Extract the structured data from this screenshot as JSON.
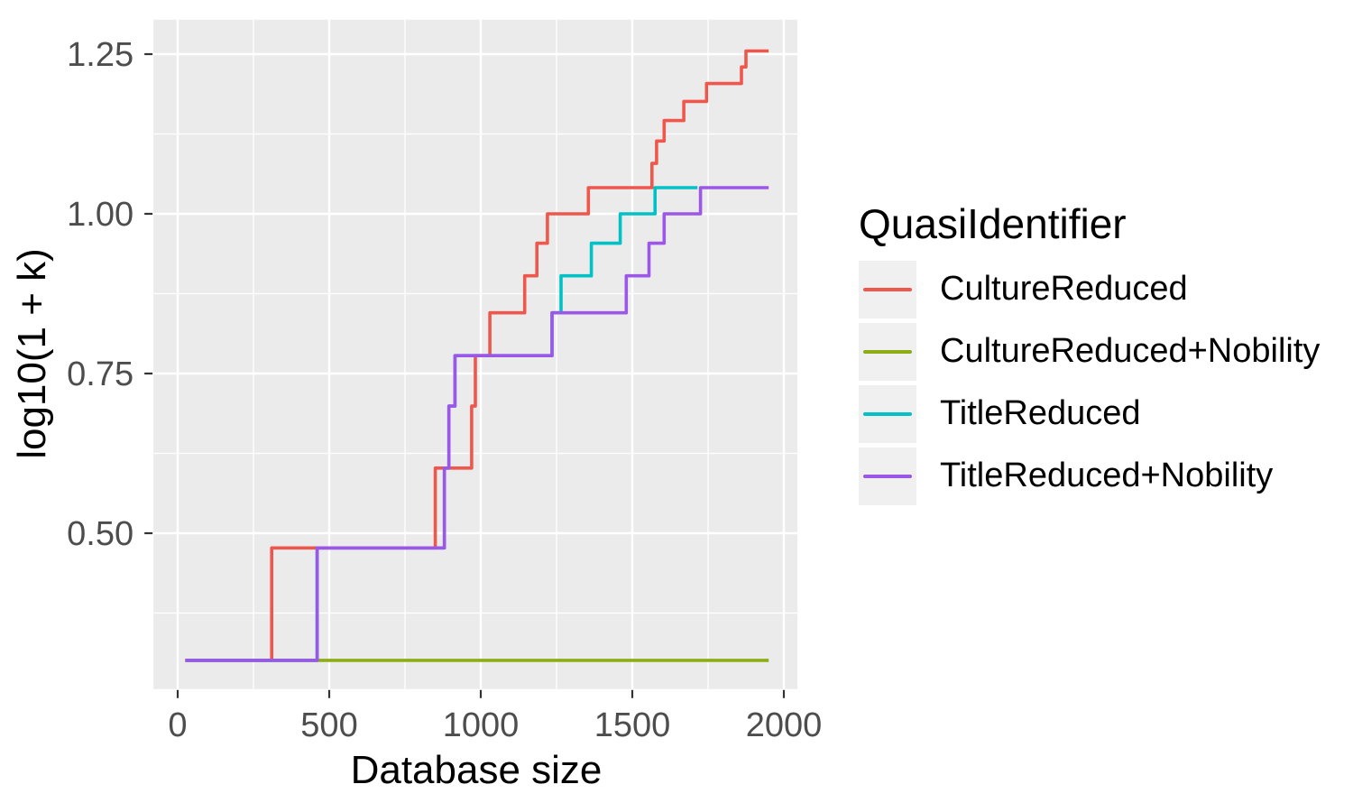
{
  "chart_data": {
    "type": "line",
    "subtype": "step",
    "title": "",
    "xlabel": "Database size",
    "ylabel": "log10(1 + k)",
    "xlim": [
      -80,
      2045
    ],
    "ylim": [
      0.256,
      1.304
    ],
    "x_ticks": [
      0,
      500,
      1000,
      1500,
      2000
    ],
    "x_tick_labels": [
      "0",
      "500",
      "1000",
      "1500",
      "2000"
    ],
    "y_ticks": [
      0.5,
      0.75,
      1.0,
      1.25
    ],
    "y_tick_labels": [
      "0.50",
      "0.75",
      "1.00",
      "1.25"
    ],
    "x_minor_ticks": [
      250,
      750,
      1250,
      1750
    ],
    "y_minor_ticks": [
      0.375,
      0.625,
      0.875,
      1.125
    ],
    "grid": "on",
    "panel_background": "#EBEBEB",
    "gridline_color": "#FFFFFF",
    "tick_mark_color": "#333333",
    "tick_label_color": "#4D4D4D",
    "legend": {
      "title": "QuasiIdentifier",
      "position": "right",
      "key_background": "#F0F0F0"
    },
    "series": [
      {
        "name": "CultureReduced",
        "color": "#EF574D",
        "start_x": 25,
        "end_x": 1950,
        "base_y": 0.301,
        "steps": [
          [
            310,
            0.477
          ],
          [
            850,
            0.602
          ],
          [
            970,
            0.699
          ],
          [
            982,
            0.778
          ],
          [
            1030,
            0.845
          ],
          [
            1145,
            0.903
          ],
          [
            1185,
            0.954
          ],
          [
            1220,
            1.0
          ],
          [
            1355,
            1.041
          ],
          [
            1565,
            1.079
          ],
          [
            1580,
            1.114
          ],
          [
            1605,
            1.146
          ],
          [
            1670,
            1.176
          ],
          [
            1745,
            1.204
          ],
          [
            1860,
            1.23
          ],
          [
            1875,
            1.255
          ]
        ]
      },
      {
        "name": "CultureReduced+Nobility",
        "color": "#8CAD16",
        "start_x": 25,
        "end_x": 1950,
        "base_y": 0.301,
        "steps": []
      },
      {
        "name": "TitleReduced",
        "color": "#00C1C5",
        "start_x": 25,
        "end_x": 1715,
        "base_y": 0.301,
        "steps": [
          [
            460,
            0.477
          ],
          [
            880,
            0.602
          ],
          [
            895,
            0.699
          ],
          [
            915,
            0.778
          ],
          [
            1235,
            0.845
          ],
          [
            1265,
            0.903
          ],
          [
            1365,
            0.954
          ],
          [
            1460,
            1.0
          ],
          [
            1575,
            1.041
          ]
        ]
      },
      {
        "name": "TitleReduced+Nobility",
        "color": "#9D57E8",
        "start_x": 25,
        "end_x": 1950,
        "base_y": 0.301,
        "steps": [
          [
            460,
            0.477
          ],
          [
            880,
            0.602
          ],
          [
            895,
            0.699
          ],
          [
            915,
            0.778
          ],
          [
            1235,
            0.845
          ],
          [
            1480,
            0.903
          ],
          [
            1555,
            0.954
          ],
          [
            1605,
            1.0
          ],
          [
            1725,
            1.041
          ]
        ]
      }
    ]
  }
}
